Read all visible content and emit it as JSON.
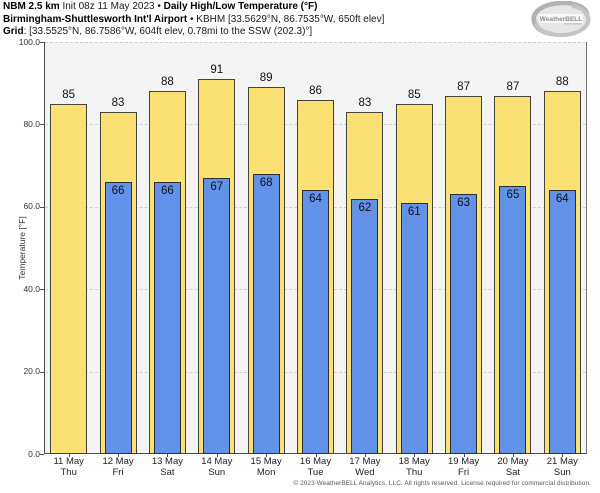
{
  "header": {
    "model": "NBM 2.5 km",
    "init": " Init 08z 11 May 2023 • ",
    "product": "Daily High/Low Temperature (°F)",
    "station_name": "Birmingham-Shuttlesworth Int'l Airport",
    "station_meta": " • KBHM [33.5629°N, 86.7535°W, 650ft elev]",
    "grid_label": "Grid",
    "grid_meta": ": [33.5525°N, 86.7586°W, 604ft elev, 0.78mi to the SSW (202.3)°]"
  },
  "logo": {
    "text": "WeatherBELL"
  },
  "footer": {
    "copyright": "© 2023 WeatherBELL Analytics, LLC. All rights reserved. License required for commercial distribution."
  },
  "chart_data": {
    "type": "bar",
    "title": "Daily High/Low Temperature (°F)",
    "xlabel": "",
    "ylabel": "Temperature [°F]",
    "ylim": [
      0,
      100
    ],
    "yticks": [
      0,
      20,
      40,
      60,
      80,
      100
    ],
    "ytick_labels": [
      "0.0",
      "20.0",
      "40.0",
      "60.0",
      "80.0",
      "100.0"
    ],
    "grid": "horizontal-dashed",
    "legend": "none",
    "plot_bg": "#f4f4f4",
    "grid_color": "#cfcfcf",
    "axis_color": "#4d4d4d",
    "categories": [
      {
        "date": "11 May",
        "day": "Thu"
      },
      {
        "date": "12 May",
        "day": "Fri"
      },
      {
        "date": "13 May",
        "day": "Sat"
      },
      {
        "date": "14 May",
        "day": "Sun"
      },
      {
        "date": "15 May",
        "day": "Mon"
      },
      {
        "date": "16 May",
        "day": "Tue"
      },
      {
        "date": "17 May",
        "day": "Wed"
      },
      {
        "date": "18 May",
        "day": "Thu"
      },
      {
        "date": "19 May",
        "day": "Fri"
      },
      {
        "date": "20 May",
        "day": "Sat"
      },
      {
        "date": "21 May",
        "day": "Sun"
      }
    ],
    "series": [
      {
        "name": "Daily High",
        "color": "#FBE173",
        "border": "#45423a",
        "values": [
          85,
          83,
          88,
          91,
          89,
          86,
          83,
          85,
          87,
          87,
          88
        ]
      },
      {
        "name": "Daily Low",
        "color": "#6292E8",
        "border": "#2e2e2e",
        "values": [
          null,
          66,
          66,
          67,
          68,
          64,
          62,
          61,
          63,
          65,
          64
        ]
      }
    ]
  }
}
